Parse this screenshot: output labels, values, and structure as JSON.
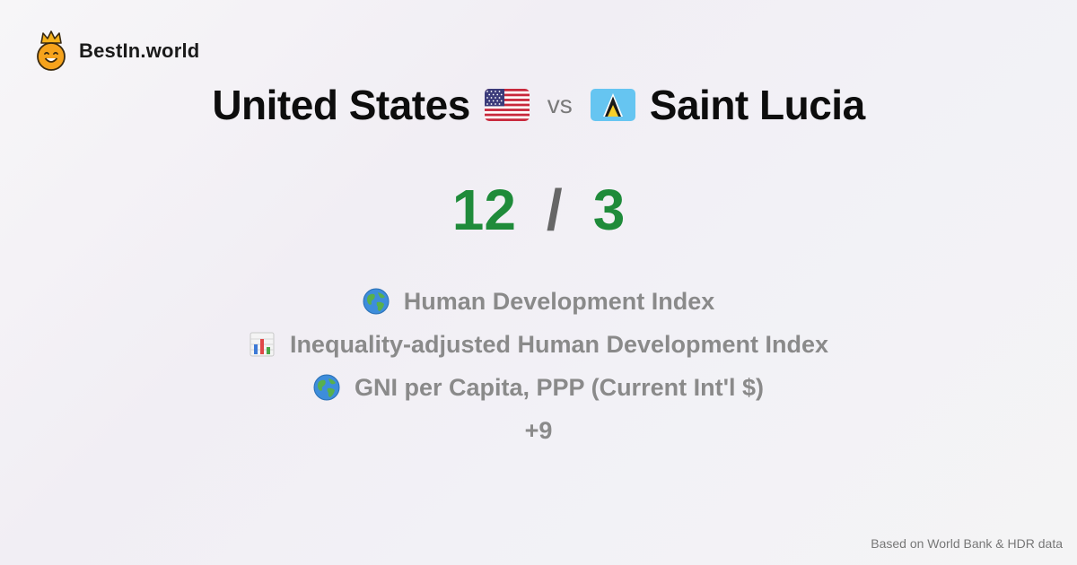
{
  "brand": {
    "name": "BestIn.world",
    "logo_icon": "crown-smiley-icon"
  },
  "comparison": {
    "left": {
      "name": "United States",
      "flag_icon": "us-flag-icon",
      "score": "12"
    },
    "vs_label": "vs",
    "right": {
      "name": "Saint Lucia",
      "flag_icon": "saint-lucia-flag-icon",
      "score": "3"
    },
    "separator": "/"
  },
  "metrics": [
    {
      "icon": "globe-icon",
      "label": "Human Development Index"
    },
    {
      "icon": "bar-chart-icon",
      "label": "Inequality-adjusted Human Development Index"
    },
    {
      "icon": "globe-icon",
      "label": "GNI per Capita, PPP (Current Int'l $)"
    }
  ],
  "more_label": "+9",
  "footer": {
    "source": "Based on World Bank & HDR data"
  },
  "colors": {
    "score_green": "#1f8b3a",
    "muted_text": "#8a8a8a",
    "logo_orange": "#f6a31c"
  }
}
